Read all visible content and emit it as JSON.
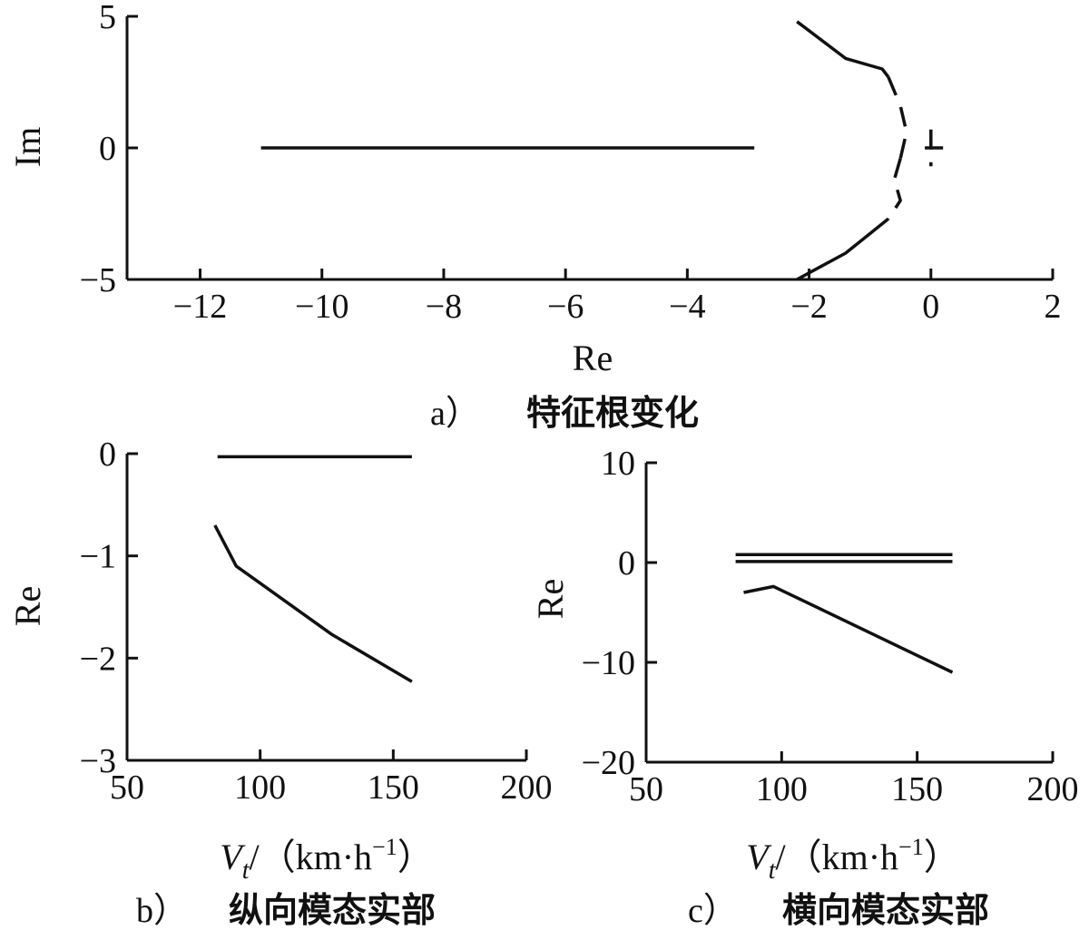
{
  "chart_data": [
    {
      "type": "line",
      "caption_letter": "a）",
      "caption_text": "特征根变化",
      "xlabel": "Re",
      "ylabel": "Im",
      "xlim": [
        -13.2,
        2
      ],
      "ylim": [
        -5,
        5
      ],
      "xticks": [
        -12,
        -10,
        -8,
        -6,
        -4,
        -2,
        0,
        2
      ],
      "xtick_labels": [
        "−12",
        "−10",
        "−8",
        "−6",
        "−4",
        "−2",
        "0",
        "2"
      ],
      "yticks": [
        5,
        0,
        -5
      ],
      "ytick_labels": [
        "5",
        "0",
        "−5"
      ],
      "series": [
        {
          "style": "solid",
          "x": [
            -11,
            -2.9
          ],
          "y": [
            0,
            0
          ]
        },
        {
          "style": "solid",
          "x": [
            -2.2,
            -1.4,
            -0.8,
            -0.7
          ],
          "y": [
            4.8,
            3.4,
            3.0,
            2.7
          ]
        },
        {
          "style": "dashed",
          "x": [
            -0.7,
            -0.5,
            -0.4,
            -0.5
          ],
          "y": [
            2.7,
            1.6,
            0.6,
            -0.4
          ]
        },
        {
          "style": "dashed",
          "x": [
            -0.5,
            -0.6,
            -0.5,
            -0.7
          ],
          "y": [
            -0.4,
            -1.2,
            -2.0,
            -2.7
          ]
        },
        {
          "style": "solid",
          "x": [
            -0.7,
            -1.4,
            -2.2
          ],
          "y": [
            -2.7,
            -4.0,
            -5.0
          ]
        },
        {
          "style": "dashed",
          "x": [
            0,
            0
          ],
          "y": [
            0.7,
            -0.7
          ]
        },
        {
          "style": "solid",
          "x": [
            -0.1,
            0.2
          ],
          "y": [
            0,
            0
          ]
        }
      ]
    },
    {
      "type": "line",
      "caption_letter": "b）",
      "caption_text": "纵向模态实部",
      "xlabel_var": "V",
      "xlabel_sub": "t",
      "xlabel_rest": "/（km·h",
      "xlabel_sup": "−1",
      "xlabel_close": "）",
      "ylabel": "Re",
      "xlim": [
        50,
        200
      ],
      "ylim": [
        -3,
        0
      ],
      "xticks": [
        50,
        100,
        150,
        200
      ],
      "xtick_labels": [
        "50",
        "100",
        "150",
        "200"
      ],
      "yticks": [
        0,
        -1,
        -2,
        -3
      ],
      "ytick_labels": [
        "0",
        "−1",
        "−2",
        "−3"
      ],
      "series": [
        {
          "x": [
            84,
            157
          ],
          "y": [
            -0.03,
            -0.03
          ]
        },
        {
          "x": [
            83,
            91,
            127,
            157
          ],
          "y": [
            -0.7,
            -1.1,
            -1.77,
            -2.23
          ]
        }
      ]
    },
    {
      "type": "line",
      "caption_letter": "c）",
      "caption_text": "横向模态实部",
      "xlabel_var": "V",
      "xlabel_sub": "t",
      "xlabel_rest": "/（km·h",
      "xlabel_sup": "−1",
      "xlabel_close": "）",
      "ylabel": "Re",
      "xlim": [
        50,
        200
      ],
      "ylim": [
        -20,
        10
      ],
      "xticks": [
        50,
        100,
        150,
        200
      ],
      "xtick_labels": [
        "50",
        "100",
        "150",
        "200"
      ],
      "yticks": [
        10,
        0,
        -10,
        -20
      ],
      "ytick_labels": [
        "10",
        "0",
        "−10",
        "−20"
      ],
      "series": [
        {
          "x": [
            83,
            163
          ],
          "y": [
            0.8,
            0.8
          ]
        },
        {
          "x": [
            83,
            163
          ],
          "y": [
            0.1,
            0.1
          ]
        },
        {
          "x": [
            86,
            97,
            163
          ],
          "y": [
            -3,
            -2.4,
            -11
          ]
        }
      ]
    }
  ]
}
